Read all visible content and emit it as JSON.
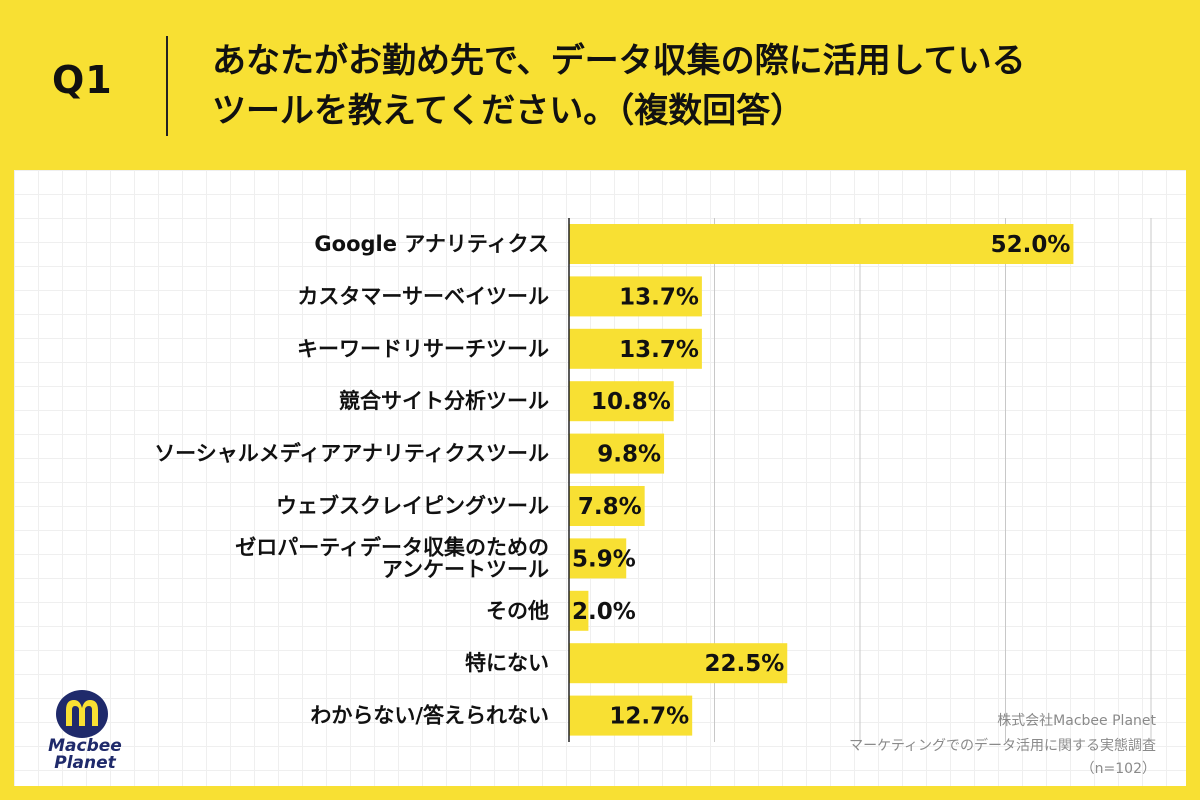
{
  "header": {
    "question_label": "Q1",
    "question_line1": "あなたがお勤め先で、データ収集の際に活用している",
    "question_line2": "ツールを教えてください。（複数回答）"
  },
  "footer": {
    "company": "株式会社Macbee Planet",
    "survey": "マーケティングでのデータ活用に関する実態調査",
    "sample": "（n=102）",
    "logo_line1": "Macbee",
    "logo_line2": "Planet"
  },
  "colors": {
    "background": "#f8e033",
    "bar": "#f8e033",
    "logo_blue": "#1f2a6b"
  },
  "chart_data": {
    "type": "bar",
    "orientation": "horizontal",
    "categories": [
      [
        "Google アナリティクス"
      ],
      [
        "カスタマーサーベイツール"
      ],
      [
        "キーワードリサーチツール"
      ],
      [
        "競合サイト分析ツール"
      ],
      [
        "ソーシャルメディアアナリティクスツール"
      ],
      [
        "ウェブスクレイピングツール"
      ],
      [
        "ゼロパーティデータ収集のための",
        "アンケートツール"
      ],
      [
        "その他"
      ],
      [
        "特にない"
      ],
      [
        "わからない/答えられない"
      ]
    ],
    "values": [
      52.0,
      13.7,
      13.7,
      10.8,
      9.8,
      7.8,
      5.9,
      2.0,
      22.5,
      12.7
    ],
    "value_labels": [
      "52.0%",
      "13.7%",
      "13.7%",
      "10.8%",
      "9.8%",
      "7.8%",
      "5.9%",
      "2.0%",
      "22.5%",
      "12.7%"
    ],
    "unit": "%",
    "xlim": [
      0,
      60
    ],
    "grid": true
  }
}
